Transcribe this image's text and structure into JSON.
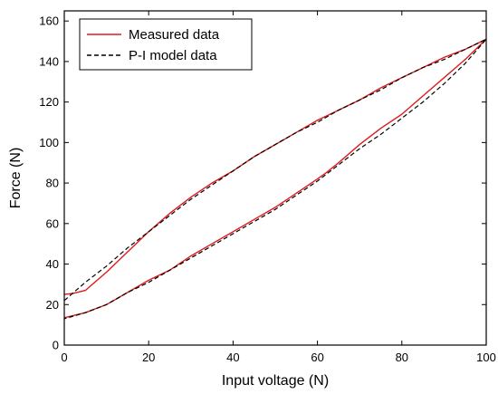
{
  "chart_data": {
    "type": "line",
    "title": "",
    "xlabel": "Input voltage (N)",
    "ylabel": "Force (N)",
    "xlim": [
      0,
      100
    ],
    "ylim": [
      0,
      165
    ],
    "xticks": [
      0,
      20,
      40,
      60,
      80,
      100
    ],
    "yticks": [
      0,
      20,
      40,
      60,
      80,
      100,
      120,
      140,
      160
    ],
    "grid": false,
    "legend_position": "top-left",
    "series": [
      {
        "name": "Measured data",
        "color": "#e0191b",
        "style": "solid",
        "x": [
          0,
          2,
          5,
          10,
          15,
          20,
          25,
          30,
          35,
          40,
          45,
          50,
          55,
          60,
          65,
          70,
          75,
          80,
          85,
          90,
          95,
          100,
          95,
          90,
          85,
          80,
          75,
          70,
          65,
          62,
          60,
          55,
          50,
          45,
          40,
          35,
          30,
          25,
          20,
          15,
          10,
          5,
          2,
          0
        ],
        "y": [
          25,
          25.5,
          27,
          36,
          46,
          56,
          65,
          73,
          80,
          86,
          93,
          99,
          105,
          111,
          116,
          121,
          127,
          132,
          137,
          142,
          146,
          151,
          141,
          132,
          123,
          114,
          107,
          99,
          90,
          85,
          82,
          75,
          68,
          62,
          56,
          50,
          44,
          37,
          32,
          26,
          20,
          16,
          14.5,
          13.5
        ]
      },
      {
        "name": "P-I model data",
        "color": "#000000",
        "style": "dashed",
        "x": [
          0,
          5,
          10,
          15,
          20,
          25,
          30,
          35,
          40,
          45,
          50,
          55,
          60,
          65,
          70,
          75,
          80,
          85,
          90,
          95,
          100,
          95,
          90,
          85,
          80,
          75,
          70,
          65,
          60,
          55,
          50,
          45,
          40,
          35,
          30,
          25,
          20,
          15,
          10,
          5,
          0
        ],
        "y": [
          22,
          31,
          39,
          48,
          56,
          64,
          72,
          79,
          86,
          93,
          99,
          105,
          110,
          116,
          121,
          126,
          132,
          137,
          141,
          146,
          151,
          139,
          129,
          120,
          112,
          104,
          97,
          89,
          81,
          74,
          67,
          61,
          55,
          49,
          43,
          37,
          31,
          26,
          20,
          16,
          13
        ]
      }
    ]
  }
}
